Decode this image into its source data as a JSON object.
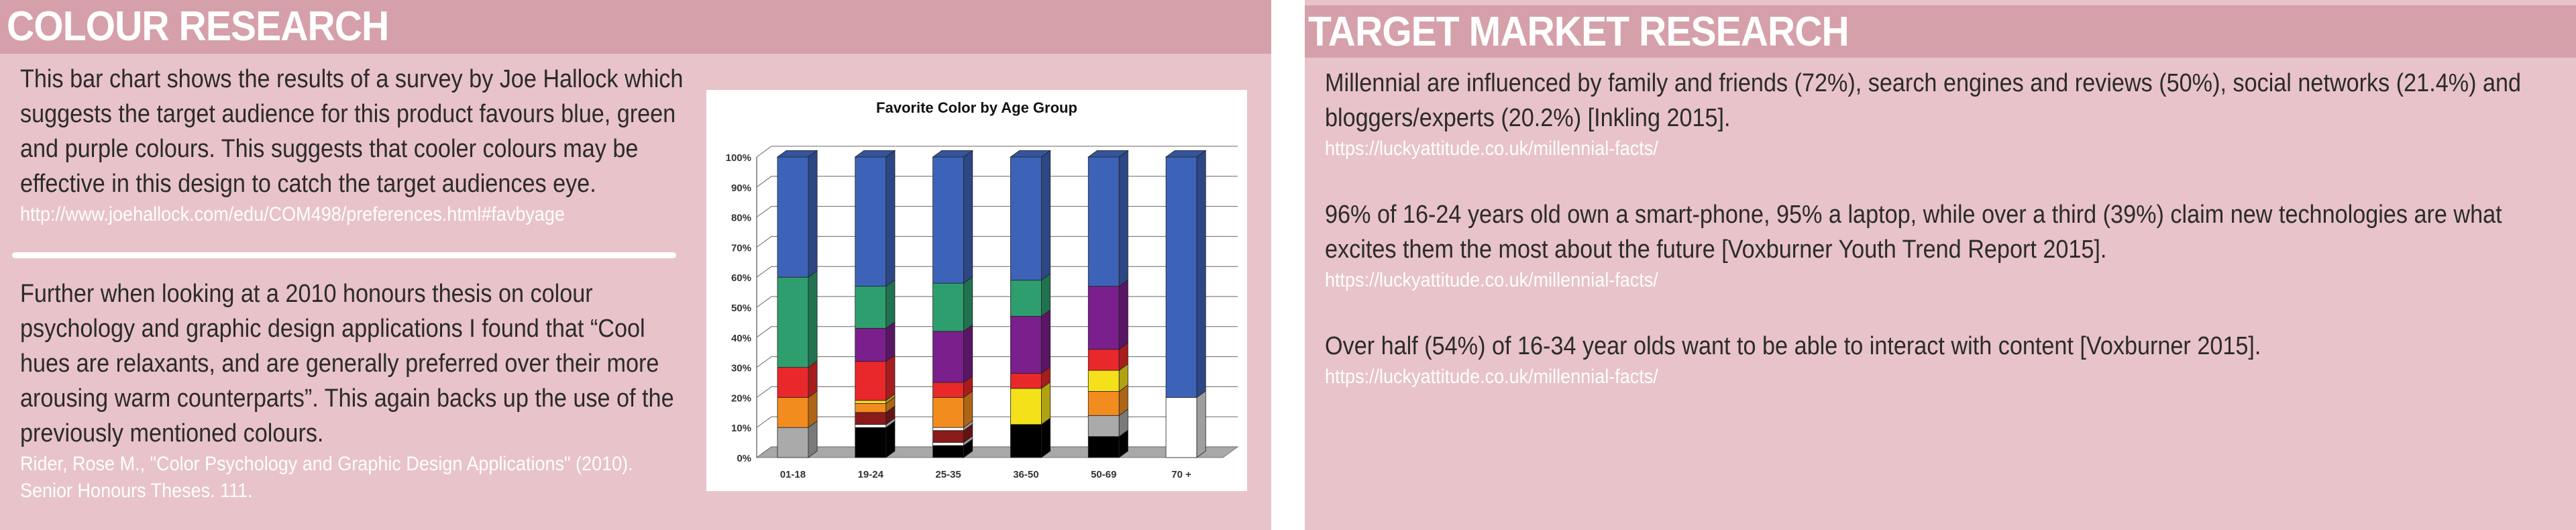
{
  "colour": {
    "title": "COLOUR RESEARCH",
    "para1": {
      "lines": [
        "This bar chart shows the results of a survey by Joe Hallock which",
        "suggests the target audience for this product favours blue, green",
        "and purple colours. This suggests that cooler colours may be",
        "effective in this design to catch the target audiences eye."
      ],
      "source": "http://www.joehallock.com/edu/COM498/preferences.html#favbyage"
    },
    "para2": {
      "lines": [
        "Further when looking at a 2010 honours thesis on colour",
        "psychology and graphic design applications I found that “Cool",
        "hues are relaxants, and are generally preferred over their more",
        "arousing warm counterparts”. This again backs up the use of the",
        "previously mentioned colours."
      ],
      "source_lines": [
        "Rider, Rose M., \"Color Psychology and Graphic Design Applications\" (2010).",
        "Senior Honours Theses. 111."
      ]
    }
  },
  "target": {
    "title": "TARGET MARKET RESEARCH",
    "items": [
      {
        "lines": [
          "Millennial are influenced by family and friends (72%), search engines and reviews (50%), social networks (21.4%) and",
          "bloggers/experts (20.2%) [Inkling 2015]."
        ],
        "source": "https://luckyattitude.co.uk/millennial-facts/"
      },
      {
        "lines": [
          "96% of 16-24 years old own a smart-phone, 95% a laptop, while over a third (39%) claim new technologies are what",
          "excites them the most about the future [Voxburner Youth Trend Report 2015]."
        ],
        "source": "https://luckyattitude.co.uk/millennial-facts/"
      },
      {
        "lines": [
          "Over half (54%) of 16-34 year olds want to be able to interact with content [Voxburner 2015]."
        ],
        "source": "https://luckyattitude.co.uk/millennial-facts/"
      }
    ]
  },
  "chart_data": {
    "type": "bar",
    "stacked": true,
    "title": "Favorite Color by Age Group",
    "categories": [
      "01-18",
      "19-24",
      "25-35",
      "36-50",
      "50-69",
      "70 +"
    ],
    "ylim": [
      0,
      100
    ],
    "yticks": [
      "0%",
      "10%",
      "20%",
      "30%",
      "40%",
      "50%",
      "60%",
      "70%",
      "80%",
      "90%",
      "100%"
    ],
    "grid": true,
    "legend": "none",
    "series": [
      {
        "color": "#000000",
        "values": [
          0,
          10,
          4,
          11,
          7,
          0
        ]
      },
      {
        "color": "#ffffff",
        "values": [
          0,
          1,
          1,
          0,
          0,
          20
        ]
      },
      {
        "color": "#aaaaaa",
        "values": [
          10,
          0,
          0,
          0,
          7,
          0
        ]
      },
      {
        "color": "#8b1a1a",
        "values": [
          0,
          4,
          4,
          0,
          0,
          0
        ]
      },
      {
        "color": "#ffffff",
        "values": [
          0,
          0,
          1,
          0,
          0,
          0
        ]
      },
      {
        "color": "#f28c1e",
        "values": [
          10,
          3,
          10,
          0,
          8,
          0
        ]
      },
      {
        "color": "#f5e11a",
        "values": [
          0,
          1,
          0,
          12,
          7,
          0
        ]
      },
      {
        "color": "#e8282a",
        "values": [
          10,
          13,
          5,
          5,
          7,
          0
        ]
      },
      {
        "color": "#7a1f8c",
        "values": [
          0,
          11,
          17,
          19,
          21,
          0
        ]
      },
      {
        "color": "#2e9e6e",
        "values": [
          30,
          14,
          16,
          12,
          0,
          0
        ]
      },
      {
        "color": "#3d63b8",
        "values": [
          40,
          43,
          42,
          41,
          43,
          80
        ]
      }
    ]
  }
}
